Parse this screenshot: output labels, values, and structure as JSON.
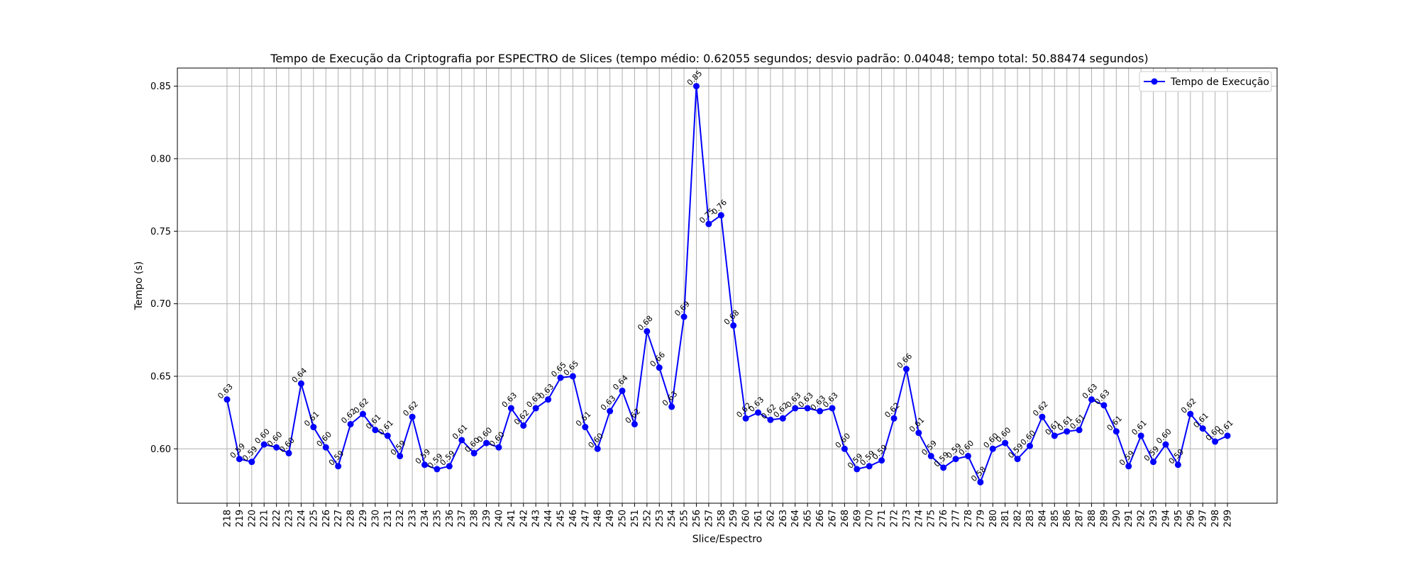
{
  "chart_data": {
    "type": "line",
    "title": "Tempo de Execução da Criptografia por ESPECTRO de Slices (tempo médio: 0.62055 segundos; desvio padrão: 0.04048; tempo total: 50.88474 segundos)",
    "xlabel": "Slice/Espectro",
    "ylabel": "Tempo (s)",
    "x": [
      218,
      219,
      220,
      221,
      222,
      223,
      224,
      225,
      226,
      227,
      228,
      229,
      230,
      231,
      232,
      233,
      234,
      235,
      236,
      237,
      238,
      239,
      240,
      241,
      242,
      243,
      244,
      245,
      246,
      247,
      248,
      249,
      250,
      251,
      252,
      253,
      254,
      255,
      256,
      257,
      258,
      259,
      260,
      261,
      262,
      263,
      264,
      265,
      266,
      267,
      268,
      269,
      270,
      271,
      272,
      273,
      274,
      275,
      276,
      277,
      278,
      279,
      280,
      281,
      282,
      283,
      284,
      285,
      286,
      287,
      288,
      289,
      290,
      291,
      292,
      293,
      294,
      295,
      296,
      297,
      298,
      299
    ],
    "series": [
      {
        "name": "Tempo de Execução",
        "color": "#0000ff",
        "values": [
          0.634,
          0.593,
          0.591,
          0.603,
          0.601,
          0.597,
          0.645,
          0.615,
          0.601,
          0.588,
          0.617,
          0.624,
          0.613,
          0.609,
          0.595,
          0.622,
          0.589,
          0.586,
          0.588,
          0.606,
          0.597,
          0.604,
          0.601,
          0.628,
          0.616,
          0.628,
          0.634,
          0.649,
          0.65,
          0.615,
          0.6,
          0.626,
          0.64,
          0.617,
          0.681,
          0.656,
          0.629,
          0.691,
          0.85,
          0.755,
          0.761,
          0.685,
          0.621,
          0.625,
          0.62,
          0.621,
          0.628,
          0.628,
          0.626,
          0.628,
          0.6,
          0.586,
          0.588,
          0.592,
          0.621,
          0.655,
          0.611,
          0.595,
          0.587,
          0.593,
          0.595,
          0.577,
          0.6,
          0.604,
          0.593,
          0.602,
          0.622,
          0.609,
          0.612,
          0.613,
          0.634,
          0.63,
          0.612,
          0.588,
          0.609,
          0.591,
          0.603,
          0.589,
          0.624,
          0.614,
          0.605,
          0.609
        ],
        "labels": [
          "0.63",
          "0.59",
          "0.59",
          "0.60",
          "0.60",
          "0.60",
          "0.64",
          "0.61",
          "0.60",
          "0.59",
          "0.62",
          "0.62",
          "0.61",
          "0.61",
          "0.59",
          "0.62",
          "0.59",
          "0.59",
          "0.59",
          "0.61",
          "0.60",
          "0.60",
          "0.60",
          "0.63",
          "0.62",
          "0.63",
          "0.63",
          "0.65",
          "0.65",
          "0.61",
          "0.60",
          "0.63",
          "0.64",
          "0.62",
          "0.68",
          "0.66",
          "0.63",
          "0.69",
          "0.85",
          "0.75",
          "0.76",
          "0.68",
          "0.62",
          "0.63",
          "0.62",
          "0.62",
          "0.63",
          "0.63",
          "0.63",
          "0.63",
          "0.60",
          "0.59",
          "0.59",
          "0.59",
          "0.62",
          "0.66",
          "0.61",
          "0.59",
          "0.59",
          "0.59",
          "0.60",
          "0.58",
          "0.60",
          "0.60",
          "0.59",
          "0.60",
          "0.62",
          "0.61",
          "0.61",
          "0.61",
          "0.63",
          "0.63",
          "0.61",
          "0.59",
          "0.61",
          "0.59",
          "0.60",
          "0.59",
          "0.62",
          "0.61",
          "0.60",
          "0.61"
        ]
      }
    ],
    "ylim": [
      0.5625,
      0.8625
    ],
    "yticks": [
      "0.60",
      "0.65",
      "0.70",
      "0.75",
      "0.80",
      "0.85"
    ],
    "grid": true,
    "legend": "top-right"
  }
}
